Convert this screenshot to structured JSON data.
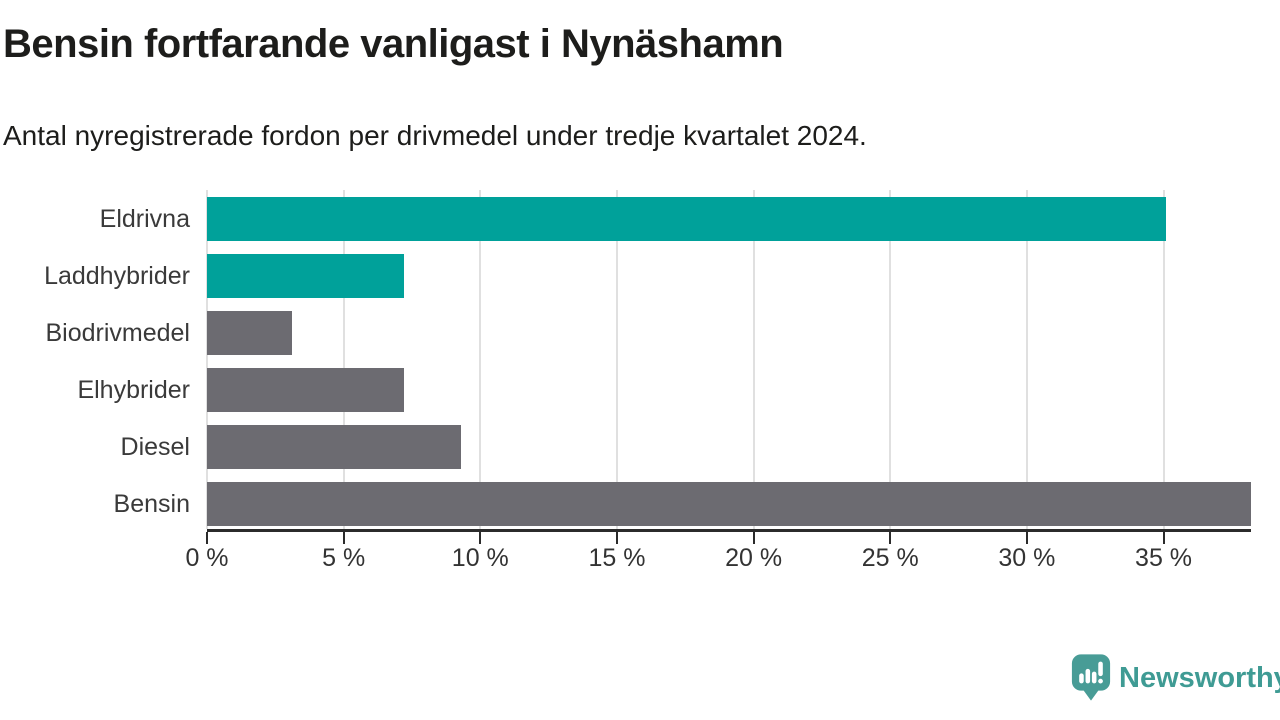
{
  "chart_data": {
    "type": "bar",
    "orientation": "horizontal",
    "title": "Bensin fortfarande vanligast i Nynäshamn",
    "subtitle": "Antal nyregistrerade fordon per drivmedel under tredje kvartalet 2024.",
    "categories": [
      "Eldrivna",
      "Laddhybrider",
      "Biodrivmedel",
      "Elhybrider",
      "Diesel",
      "Bensin"
    ],
    "values": [
      35.1,
      7.2,
      3.1,
      7.2,
      9.3,
      38.2
    ],
    "value_unit": "%",
    "xlabel": "",
    "ylabel": "",
    "xlim": [
      0,
      38.2
    ],
    "xticks": [
      0,
      5,
      10,
      15,
      20,
      25,
      30,
      35
    ],
    "xtick_labels": [
      "0 %",
      "5 %",
      "10 %",
      "15 %",
      "20 %",
      "25 %",
      "30 %",
      "35 %"
    ],
    "bar_colors": [
      "#00a19a",
      "#00a19a",
      "#6c6b71",
      "#6c6b71",
      "#6c6b71",
      "#6c6b71"
    ],
    "grid": true,
    "legend_position": "none"
  },
  "branding": {
    "logo_icon": "newsworthy-speech-bubble-bar-chart-icon",
    "logo_text": "Newsworthy",
    "logo_color": "#3f9b94"
  },
  "colors": {
    "highlight_teal": "#00a19a",
    "neutral_gray": "#6c6b71",
    "axis_line": "#2b2b2b",
    "gridline": "#e0e0e0",
    "title_text": "#1d1d1b",
    "label_text": "#3a3a3a"
  }
}
